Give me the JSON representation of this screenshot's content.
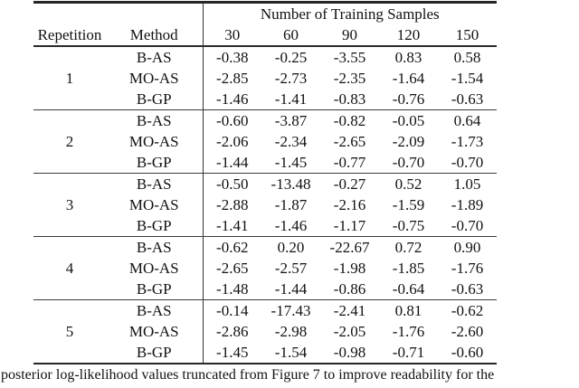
{
  "table": {
    "header": {
      "group_label": "Number of Training Samples",
      "repetition_label": "Repetition",
      "method_label": "Method",
      "sample_sizes": [
        "30",
        "60",
        "90",
        "120",
        "150"
      ]
    },
    "blocks": [
      {
        "repetition": "1",
        "rows": [
          {
            "method": "B-AS",
            "values": [
              "-0.38",
              "-0.25",
              "-3.55",
              "0.83",
              "0.58"
            ]
          },
          {
            "method": "MO-AS",
            "values": [
              "-2.85",
              "-2.73",
              "-2.35",
              "-1.64",
              "-1.54"
            ]
          },
          {
            "method": "B-GP",
            "values": [
              "-1.46",
              "-1.41",
              "-0.83",
              "-0.76",
              "-0.63"
            ]
          }
        ]
      },
      {
        "repetition": "2",
        "rows": [
          {
            "method": "B-AS",
            "values": [
              "-0.60",
              "-3.87",
              "-0.82",
              "-0.05",
              "0.64"
            ]
          },
          {
            "method": "MO-AS",
            "values": [
              "-2.06",
              "-2.34",
              "-2.65",
              "-2.09",
              "-1.73"
            ]
          },
          {
            "method": "B-GP",
            "values": [
              "-1.44",
              "-1.45",
              "-0.77",
              "-0.70",
              "-0.70"
            ]
          }
        ]
      },
      {
        "repetition": "3",
        "rows": [
          {
            "method": "B-AS",
            "values": [
              "-0.50",
              "-13.48",
              "-0.27",
              "0.52",
              "1.05"
            ]
          },
          {
            "method": "MO-AS",
            "values": [
              "-2.88",
              "-1.87",
              "-2.16",
              "-1.59",
              "-1.89"
            ]
          },
          {
            "method": "B-GP",
            "values": [
              "-1.41",
              "-1.46",
              "-1.17",
              "-0.75",
              "-0.70"
            ]
          }
        ]
      },
      {
        "repetition": "4",
        "rows": [
          {
            "method": "B-AS",
            "values": [
              "-0.62",
              "0.20",
              "-22.67",
              "0.72",
              "0.90"
            ]
          },
          {
            "method": "MO-AS",
            "values": [
              "-2.65",
              "-2.57",
              "-1.98",
              "-1.85",
              "-1.76"
            ]
          },
          {
            "method": "B-GP",
            "values": [
              "-1.48",
              "-1.44",
              "-0.86",
              "-0.64",
              "-0.63"
            ]
          }
        ]
      },
      {
        "repetition": "5",
        "rows": [
          {
            "method": "B-AS",
            "values": [
              "-0.14",
              "-17.43",
              "-2.41",
              "0.81",
              "-0.62"
            ]
          },
          {
            "method": "MO-AS",
            "values": [
              "-2.86",
              "-2.98",
              "-2.05",
              "-1.76",
              "-2.60"
            ]
          },
          {
            "method": "B-GP",
            "values": [
              "-1.45",
              "-1.54",
              "-0.98",
              "-0.71",
              "-0.60"
            ]
          }
        ]
      }
    ]
  },
  "caption": {
    "text": "posterior log-likelihood values truncated from Figure 7 to improve readability for the"
  },
  "colors": {
    "background": "#ffffff",
    "text": "#111111",
    "rule": "#262626"
  }
}
